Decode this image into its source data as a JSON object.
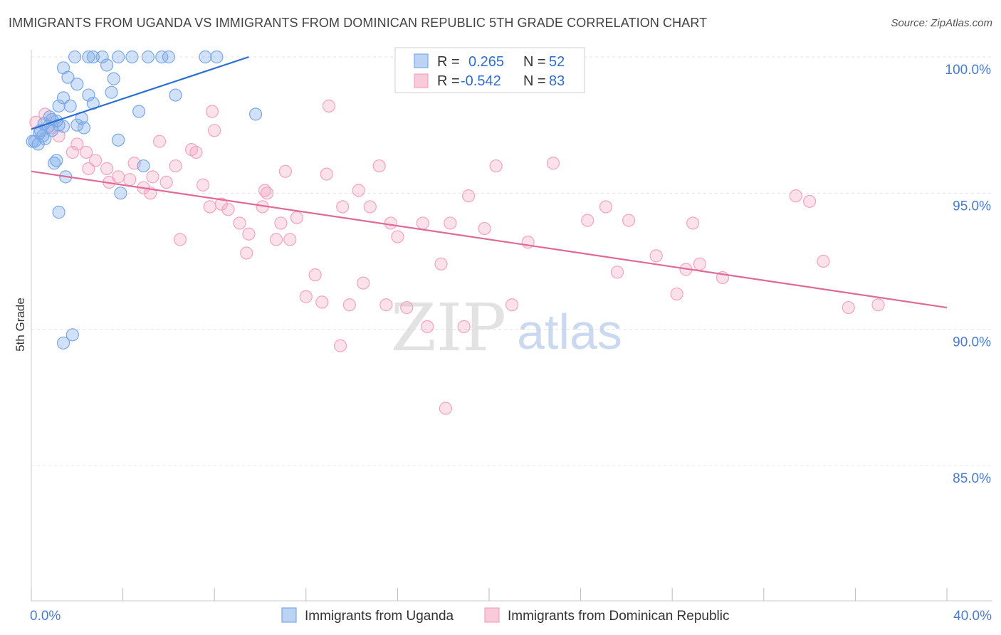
{
  "title": "IMMIGRANTS FROM UGANDA VS IMMIGRANTS FROM DOMINICAN REPUBLIC 5TH GRADE CORRELATION CHART",
  "source": "Source: ZipAtlas.com",
  "watermark": {
    "zip": "ZIP",
    "atlas": "atlas"
  },
  "chart_data": {
    "type": "scatter",
    "ylabel": "5th Grade",
    "xlabel": "",
    "xlim": [
      0,
      40
    ],
    "ylim": [
      80.5,
      100.6
    ],
    "x_tick_labels": [
      {
        "value": 0,
        "label": "0.0%"
      },
      {
        "value": 40,
        "label": "40.0%"
      }
    ],
    "x_minor_ticks": [
      0,
      4,
      8,
      12,
      16,
      20,
      24,
      28,
      32,
      36,
      40
    ],
    "y_ticks": [
      {
        "value": 100,
        "label": "100.0%"
      },
      {
        "value": 95,
        "label": "95.0%"
      },
      {
        "value": 90,
        "label": "90.0%"
      },
      {
        "value": 85,
        "label": "85.0%"
      }
    ],
    "grid": true,
    "legend_placement": "top-center",
    "series": [
      {
        "name": "Immigrants from Uganda",
        "color": "#7aa8e8",
        "line_color": "#2a6fd0",
        "R": "0.265",
        "N": "52",
        "trend": [
          [
            0,
            97.35
          ],
          [
            9.5,
            100.0
          ]
        ],
        "points": [
          [
            1.9,
            100
          ],
          [
            2.5,
            100
          ],
          [
            2.7,
            100
          ],
          [
            3.1,
            100
          ],
          [
            3.8,
            100
          ],
          [
            4.4,
            100
          ],
          [
            5.1,
            100
          ],
          [
            5.7,
            100
          ],
          [
            6.0,
            100
          ],
          [
            7.6,
            100
          ],
          [
            8.1,
            100
          ],
          [
            1.4,
            99.6
          ],
          [
            1.6,
            99.25
          ],
          [
            2.0,
            99.0
          ],
          [
            2.5,
            98.6
          ],
          [
            3.6,
            99.2
          ],
          [
            3.3,
            99.7
          ],
          [
            1.4,
            98.5
          ],
          [
            1.2,
            98.2
          ],
          [
            1.7,
            98.2
          ],
          [
            2.7,
            98.3
          ],
          [
            3.5,
            98.7
          ],
          [
            4.7,
            98.0
          ],
          [
            6.3,
            98.6
          ],
          [
            9.8,
            97.9
          ],
          [
            0.8,
            97.8
          ],
          [
            0.9,
            97.7
          ],
          [
            1.1,
            97.65
          ],
          [
            0.55,
            97.55
          ],
          [
            0.75,
            97.45
          ],
          [
            1.2,
            97.5
          ],
          [
            2.0,
            97.5
          ],
          [
            2.3,
            97.4
          ],
          [
            0.4,
            97.3
          ],
          [
            0.9,
            97.3
          ],
          [
            1.4,
            97.45
          ],
          [
            0.35,
            97.2
          ],
          [
            0.5,
            97.1
          ],
          [
            0.6,
            97.0
          ],
          [
            0.15,
            96.9
          ],
          [
            3.8,
            96.95
          ],
          [
            1.0,
            96.1
          ],
          [
            1.1,
            96.2
          ],
          [
            1.5,
            95.6
          ],
          [
            3.9,
            95.0
          ],
          [
            4.9,
            96.0
          ],
          [
            1.2,
            94.3
          ],
          [
            1.8,
            89.8
          ],
          [
            1.4,
            89.5
          ],
          [
            0.3,
            96.8
          ],
          [
            2.2,
            97.75
          ],
          [
            0.05,
            96.9
          ]
        ]
      },
      {
        "name": "Immigrants from Dominican Republic",
        "color": "#f4a3be",
        "line_color": "#e06a96",
        "R": "-0.542",
        "N": "83",
        "trend": [
          [
            0,
            95.8
          ],
          [
            40,
            90.8
          ]
        ],
        "points": [
          [
            0.2,
            97.6
          ],
          [
            0.6,
            97.9
          ],
          [
            0.9,
            97.4
          ],
          [
            1.2,
            97.1
          ],
          [
            2.0,
            96.8
          ],
          [
            1.8,
            96.5
          ],
          [
            2.4,
            96.5
          ],
          [
            2.8,
            96.2
          ],
          [
            3.3,
            95.9
          ],
          [
            2.5,
            95.9
          ],
          [
            3.4,
            95.4
          ],
          [
            3.8,
            95.6
          ],
          [
            4.3,
            95.5
          ],
          [
            4.5,
            96.1
          ],
          [
            4.9,
            95.2
          ],
          [
            5.3,
            95.6
          ],
          [
            5.2,
            95.0
          ],
          [
            5.9,
            95.4
          ],
          [
            5.6,
            96.9
          ],
          [
            6.3,
            96.0
          ],
          [
            6.5,
            93.3
          ],
          [
            7.0,
            96.6
          ],
          [
            7.2,
            96.5
          ],
          [
            7.5,
            95.3
          ],
          [
            7.8,
            94.5
          ],
          [
            8.0,
            97.3
          ],
          [
            8.3,
            94.6
          ],
          [
            8.6,
            94.4
          ],
          [
            9.1,
            93.9
          ],
          [
            9.4,
            92.8
          ],
          [
            9.5,
            93.5
          ],
          [
            7.9,
            98.0
          ],
          [
            10.1,
            94.5
          ],
          [
            10.2,
            95.1
          ],
          [
            10.3,
            95.0
          ],
          [
            10.7,
            93.3
          ],
          [
            10.9,
            93.9
          ],
          [
            11.1,
            95.8
          ],
          [
            11.3,
            93.3
          ],
          [
            11.6,
            94.1
          ],
          [
            12.0,
            91.2
          ],
          [
            12.4,
            92.0
          ],
          [
            12.7,
            91.0
          ],
          [
            12.9,
            95.7
          ],
          [
            13.0,
            98.2
          ],
          [
            13.5,
            89.4
          ],
          [
            13.6,
            94.5
          ],
          [
            13.9,
            90.9
          ],
          [
            14.3,
            95.1
          ],
          [
            14.5,
            91.7
          ],
          [
            14.8,
            94.5
          ],
          [
            15.2,
            96.0
          ],
          [
            15.5,
            90.9
          ],
          [
            15.7,
            93.9
          ],
          [
            16.0,
            93.4
          ],
          [
            16.4,
            90.8
          ],
          [
            17.1,
            93.9
          ],
          [
            17.3,
            90.1
          ],
          [
            17.9,
            92.4
          ],
          [
            18.1,
            87.1
          ],
          [
            18.3,
            93.9
          ],
          [
            18.9,
            90.1
          ],
          [
            19.1,
            94.9
          ],
          [
            19.8,
            93.7
          ],
          [
            20.3,
            96.0
          ],
          [
            21.0,
            90.9
          ],
          [
            21.7,
            93.2
          ],
          [
            22.8,
            96.1
          ],
          [
            24.3,
            94.0
          ],
          [
            25.1,
            94.5
          ],
          [
            25.6,
            92.1
          ],
          [
            26.1,
            94.0
          ],
          [
            27.3,
            92.7
          ],
          [
            28.2,
            91.3
          ],
          [
            28.6,
            92.2
          ],
          [
            28.9,
            93.9
          ],
          [
            29.2,
            92.4
          ],
          [
            30.2,
            91.9
          ],
          [
            33.4,
            94.9
          ],
          [
            34.0,
            94.7
          ],
          [
            34.6,
            92.5
          ],
          [
            35.7,
            90.8
          ],
          [
            37.0,
            90.9
          ]
        ]
      }
    ]
  }
}
